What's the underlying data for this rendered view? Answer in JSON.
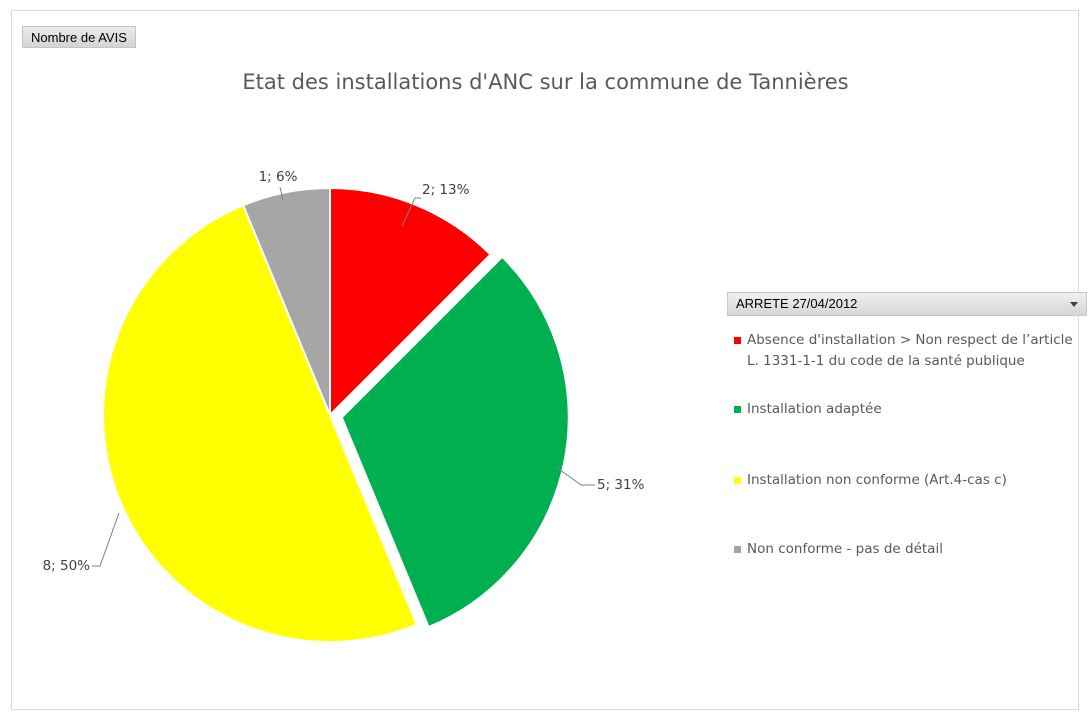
{
  "field_button": {
    "label": "Nombre de AVIS"
  },
  "legend_filter": {
    "label": "ARRETE 27/04/2012"
  },
  "chart_data": {
    "type": "pie",
    "title": "Etat des installations d'ANC sur la commune de Tannières",
    "legend_position": "right",
    "slices": [
      {
        "name": "Absence d'installation > Non respect de l’article L. 1331-1-1 du code de la santé publique",
        "value": 2,
        "label": "2; 13%",
        "color": "#ff0000",
        "exploded": false
      },
      {
        "name": "Installation adaptée",
        "value": 5,
        "label": "5; 31%",
        "color": "#00b050",
        "exploded": true
      },
      {
        "name": "Installation non conforme (Art.4-cas c)",
        "value": 8,
        "label": "8; 50%",
        "color": "#ffff00",
        "exploded": false
      },
      {
        "name": "Non conforme - pas de détail",
        "value": 1,
        "label": "1; 6%",
        "color": "#a6a6a6",
        "exploded": false
      }
    ]
  }
}
